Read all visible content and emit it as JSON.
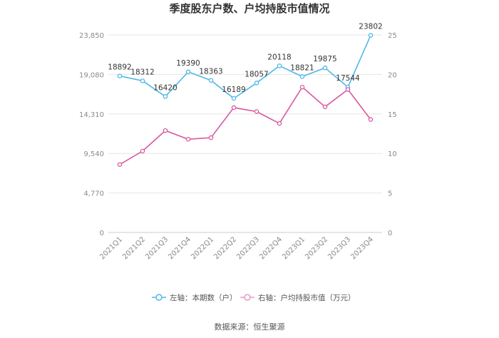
{
  "chart_data": {
    "type": "line",
    "title": "季度股东户数、户均持股市值情况",
    "categories": [
      "2021Q1",
      "2021Q2",
      "2021Q3",
      "2021Q4",
      "2022Q1",
      "2022Q2",
      "2022Q3",
      "2022Q4",
      "2023Q1",
      "2023Q2",
      "2023Q3",
      "2023Q4"
    ],
    "left_axis": {
      "ylim": [
        0,
        23850
      ],
      "ticks": [
        "0",
        "4,770",
        "9,540",
        "14,310",
        "19,080",
        "23,850"
      ]
    },
    "right_axis": {
      "ylim": [
        0,
        25
      ],
      "ticks": [
        "0",
        "5",
        "10",
        "15",
        "20",
        "25"
      ]
    },
    "grid": true,
    "legend_position": "bottom",
    "series": [
      {
        "name": "左轴：本期数（户）",
        "axis": "left",
        "color": "#4db8e8",
        "values": [
          18892,
          18312,
          16420,
          19390,
          18363,
          16189,
          18057,
          20118,
          18821,
          19875,
          17544,
          23802
        ],
        "labels": [
          "18892",
          "18312",
          "16420",
          "19390",
          "18363",
          "16189",
          "18057",
          "20118",
          "18821",
          "19875",
          "17544",
          "23802"
        ]
      },
      {
        "name": "右轴：户均持股市值（万元）",
        "axis": "right",
        "color": "#d9599e",
        "values": [
          8.6,
          10.3,
          12.9,
          11.8,
          12.0,
          15.8,
          15.3,
          13.8,
          18.4,
          15.9,
          18.1,
          14.3
        ]
      }
    ]
  },
  "source": "数据来源：恒生聚源"
}
